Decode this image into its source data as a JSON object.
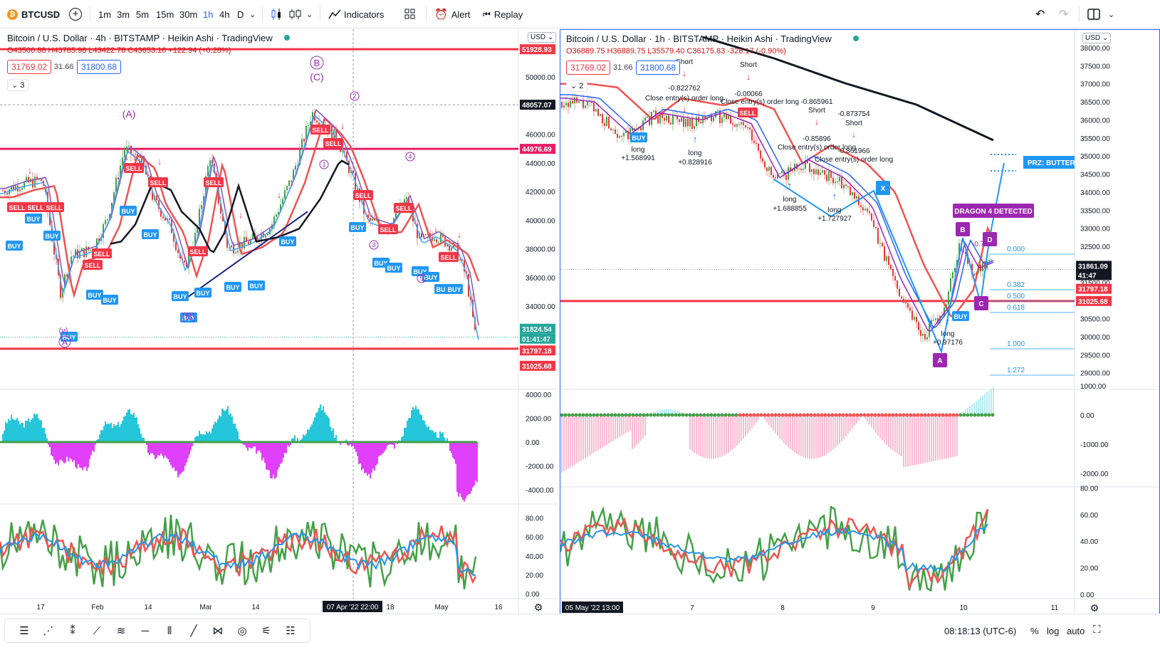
{
  "topbar": {
    "symbol": "BTCUSD",
    "symbol_icon": "bitcoin-icon",
    "add_icon": "plus-circle-icon",
    "timeframes": [
      "1m",
      "3m",
      "5m",
      "15m",
      "30m",
      "1h",
      "4h",
      "D"
    ],
    "active_timeframe": "1h",
    "indicators_label": "Indicators",
    "alert_label": "Alert",
    "replay_label": "Replay"
  },
  "left_chart": {
    "title": "Bitcoin / U.S. Dollar · 4h · BITSTAMP · Heikin Ashi · TradingView",
    "ohlc": "O43500.88 H43785.98 L43422.78 C43653.16 +122.94 (+0.28%)",
    "bid": "31769.02",
    "spread": "31.66",
    "ask": "31800.68",
    "collapse_count": "3",
    "currency": "USD",
    "price_axis": [
      "50000.00",
      "48000.00",
      "46000.00",
      "44000.00",
      "42000.00",
      "40000.00",
      "38000.00",
      "36000.00",
      "34000.00"
    ],
    "price_tags": [
      {
        "label": "51928.93",
        "color": "#f23645"
      },
      {
        "label": "48057.07",
        "color": "#131722"
      },
      {
        "label": "44976.69",
        "color": "#e91e63"
      },
      {
        "label": "31824.54",
        "color": "#26a69a"
      },
      {
        "label": "01:41:47",
        "color": "#26a69a"
      },
      {
        "label": "31797.18",
        "color": "#f23645"
      },
      {
        "label": "31025.68",
        "color": "#f23645"
      }
    ],
    "osc_axis": [
      "4000.00",
      "2000.00",
      "0.00",
      "-2000.00",
      "-4000.00"
    ],
    "rsi_axis": [
      "80.00",
      "60.00",
      "40.00",
      "20.00",
      "0.00"
    ],
    "time_axis": [
      "17",
      "Feb",
      "14",
      "Mar",
      "14",
      "18",
      "May",
      "16"
    ],
    "time_cursor": "07 Apr '22   22:00",
    "wave_labels": [
      "(A)",
      "(B)",
      "(C)",
      "B",
      "(v)",
      "A",
      "1",
      "2",
      "3",
      "4",
      "5"
    ],
    "signal_labels": {
      "buy": "BUY",
      "sell": "SELL"
    }
  },
  "right_chart": {
    "title": "Bitcoin / U.S. Dollar · 1h · BITSTAMP · Heikin Ashi · TradingView",
    "ohlc": "O36889.75 H36889.75 L35579.40 C36175.83 -328.17 (-0.90%)",
    "bid": "31769.02",
    "spread": "31.66",
    "ask": "31800.68",
    "collapse_count": "2",
    "currency": "USD",
    "price_axis": [
      "38000.00",
      "37500.00",
      "37000.00",
      "36500.00",
      "36000.00",
      "35500.00",
      "35000.00",
      "34500.00",
      "34000.00",
      "33500.00",
      "33000.00",
      "32500.00",
      "32000.00",
      "31500.00",
      "30500.00",
      "30000.00",
      "29500.00",
      "29000.00"
    ],
    "price_tags": [
      {
        "label": "31861.09",
        "color": "#131722"
      },
      {
        "label": "41:47",
        "color": "#131722"
      },
      {
        "label": "31797.18",
        "color": "#f23645"
      },
      {
        "label": "31025.68",
        "color": "#f23645"
      }
    ],
    "osc_axis": [
      "1000.00",
      "0.00",
      "-1000.00",
      "-2000.00"
    ],
    "rsi_axis": [
      "80.00",
      "60.00",
      "40.00",
      "20.00",
      "0.00"
    ],
    "time_axis": [
      "7",
      "8",
      "9",
      "10",
      "11"
    ],
    "time_cursor": "05 May '22   13:00",
    "annotations": [
      {
        "text": "Short"
      },
      {
        "text": "-0.822762"
      },
      {
        "text": "Close entry(s) order long"
      },
      {
        "text": "Short"
      },
      {
        "text": "-0.00066"
      },
      {
        "text": "Close entry(s) order long"
      },
      {
        "text": "-0.865961"
      },
      {
        "text": "Short"
      },
      {
        "text": "-0.873754"
      },
      {
        "text": "Short"
      },
      {
        "text": "-0.85896"
      },
      {
        "text": "Close entry(s) order long"
      },
      {
        "text": "-0.861966"
      },
      {
        "text": "Close entry(s) order long"
      },
      {
        "text": "long"
      },
      {
        "text": "+1.568991"
      },
      {
        "text": "long"
      },
      {
        "text": "+0.828916"
      },
      {
        "text": "long"
      },
      {
        "text": "+1.688855"
      },
      {
        "text": "long"
      },
      {
        "text": "+1.727927"
      },
      {
        "text": "long"
      },
      {
        "text": "+0.97176"
      }
    ],
    "pattern_labels": [
      "X",
      "A",
      "B",
      "C",
      "D"
    ],
    "prz_label": "PRZ: BUTTERF",
    "dragon_label": "DRAGON 4 DETECTED",
    "fib_levels": [
      "0.000",
      "0.382",
      "0.500",
      "0.618",
      "1.000",
      "1.272"
    ],
    "fib_extra": "-0.79",
    "buy_label": "BUY",
    "sell_label": "SELL"
  },
  "bottombar": {
    "clock": "08:18:13 (UTC-6)",
    "percent": "%",
    "log": "log",
    "auto": "auto",
    "tool_icons": [
      "cursor-lines-icon",
      "zigzag-abc-icon",
      "wave-numbers-icon",
      "trend-line-icon",
      "fib-icon",
      "horizontal-line-icon",
      "bars-pattern-icon",
      "ray-icon",
      "xabcd-pattern-icon",
      "brush-icon",
      "settings-lines-icon",
      "list-icon"
    ]
  }
}
